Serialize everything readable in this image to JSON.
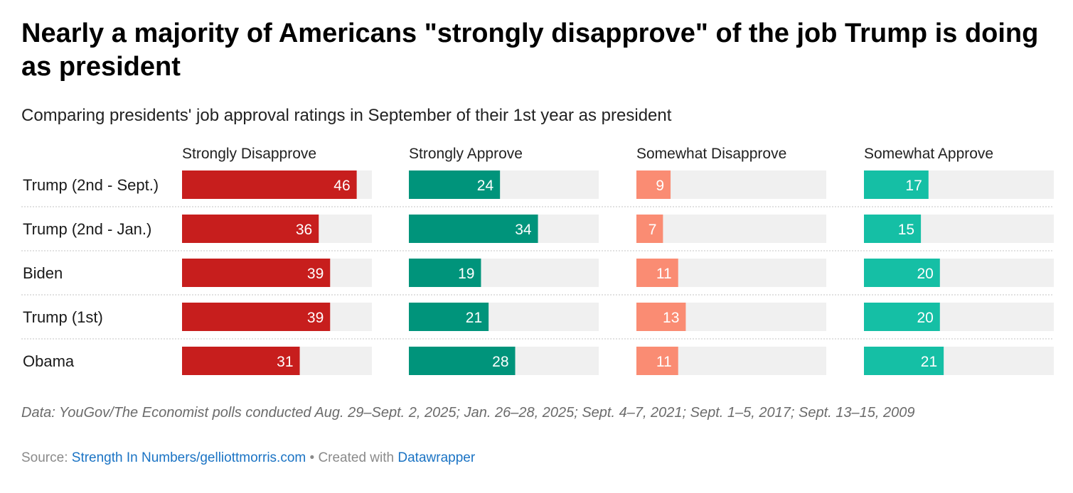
{
  "header": {
    "title": "Nearly a majority of Americans \"strongly disapprove\" of the job Trump is doing as president",
    "subtitle": "Comparing presidents' job approval ratings in September of their 1st year as president"
  },
  "chart_data": {
    "type": "bar",
    "layout": "small-multiples",
    "title": "Nearly a majority of Americans \"strongly disapprove\" of the job Trump is doing as president",
    "subtitle": "Comparing presidents' job approval ratings in September of their 1st year as president",
    "categories": [
      "Trump (2nd - Sept.)",
      "Trump (2nd - Jan.)",
      "Biden",
      "Trump (1st)",
      "Obama"
    ],
    "xlim": [
      0,
      50
    ],
    "grid": false,
    "series": [
      {
        "name": "Strongly Disapprove",
        "color": "#c71e1d",
        "values": [
          46,
          36,
          39,
          39,
          31
        ]
      },
      {
        "name": "Strongly Approve",
        "color": "#00947b",
        "values": [
          24,
          34,
          19,
          21,
          28
        ]
      },
      {
        "name": "Somewhat Disapprove",
        "color": "#fa8c73",
        "values": [
          9,
          7,
          11,
          13,
          11
        ]
      },
      {
        "name": "Somewhat Approve",
        "color": "#15bfa5",
        "values": [
          17,
          15,
          20,
          20,
          21
        ]
      }
    ],
    "track_color": "#f0f0f0"
  },
  "notes": "Data: YouGov/The Economist polls conducted Aug. 29–Sept. 2, 2025; Jan. 26–28, 2025; Sept. 4–7, 2021; Sept. 1–5, 2017; Sept. 13–15, 2009",
  "footer": {
    "source_label": "Source:",
    "source_link": "Strength In Numbers/gelliottmorris.com",
    "separator": " • ",
    "created_label": "Created with",
    "created_link": "Datawrapper"
  }
}
